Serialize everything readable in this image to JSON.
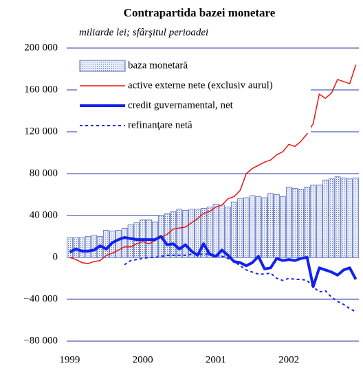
{
  "chart_data": {
    "type": "bar",
    "title": "Contrapartida bazei monetare",
    "subtitle": "miliarde lei; sfârşitul perioadei",
    "categories": [
      "1999",
      null,
      null,
      null,
      null,
      null,
      null,
      null,
      null,
      null,
      null,
      null,
      "2000",
      null,
      null,
      null,
      null,
      null,
      null,
      null,
      null,
      null,
      null,
      null,
      "2001",
      null,
      null,
      null,
      null,
      null,
      null,
      null,
      null,
      null,
      null,
      null,
      "2002",
      null,
      null,
      null,
      null,
      null,
      null,
      null,
      null,
      null,
      null,
      null
    ],
    "series": [
      {
        "name": "baza monetară",
        "type": "bar",
        "color": "#3344aa",
        "values": [
          19000,
          19000,
          19000,
          20000,
          21000,
          20000,
          26000,
          25000,
          26000,
          28000,
          31000,
          33000,
          36000,
          36000,
          34000,
          40000,
          42000,
          44000,
          46000,
          45000,
          46000,
          46000,
          47000,
          48000,
          51000,
          50000,
          48000,
          53000,
          56000,
          57000,
          59000,
          58000,
          57000,
          61000,
          60000,
          58000,
          67000,
          66000,
          65000,
          67000,
          69000,
          69000,
          74000,
          75000,
          77000,
          76000,
          75000,
          76000
        ]
      },
      {
        "name": "active externe nete (exclusiv aurul)",
        "type": "line",
        "color": "#ee1111",
        "width": 1.5,
        "dashed": false,
        "values": [
          0,
          -2000,
          -5000,
          -6000,
          -4000,
          -3000,
          2000,
          4000,
          7000,
          10000,
          10000,
          13000,
          15000,
          13000,
          16000,
          19000,
          22000,
          27000,
          28000,
          29000,
          33000,
          37000,
          42000,
          44000,
          48000,
          50000,
          56000,
          58000,
          64000,
          80000,
          85000,
          88000,
          91000,
          93000,
          98000,
          101000,
          108000,
          106000,
          111000,
          118000,
          128000,
          156000,
          152000,
          157000,
          170000,
          168000,
          166000,
          184000
        ]
      },
      {
        "name": "credit guvernamental, net",
        "type": "line",
        "color": "#1122ee",
        "width": 4,
        "dashed": false,
        "values": [
          5000,
          8000,
          6000,
          6000,
          7000,
          11000,
          8000,
          14000,
          17000,
          19000,
          18000,
          17000,
          17000,
          17000,
          17000,
          20000,
          12000,
          13000,
          8000,
          12000,
          6000,
          2000,
          13000,
          3000,
          1000,
          7000,
          2000,
          -4000,
          -5000,
          -8000,
          -5000,
          1000,
          -11000,
          -10000,
          -1000,
          -3000,
          -2000,
          -3000,
          -1000,
          0,
          -28000,
          -10000,
          -12000,
          -14000,
          -17000,
          -12000,
          -10000,
          -21000
        ]
      },
      {
        "name": "refinanţare netă",
        "type": "line",
        "color": "#1122ee",
        "width": 2,
        "dashed": true,
        "values": [
          null,
          null,
          null,
          null,
          null,
          null,
          null,
          null,
          null,
          -7000,
          -3000,
          -2000,
          -1000,
          0,
          0,
          1000,
          2000,
          2000,
          2000,
          2000,
          3000,
          3000,
          3000,
          3000,
          2000,
          1000,
          -1000,
          -4000,
          -8000,
          -12000,
          -14000,
          -16000,
          -16000,
          -15000,
          -20000,
          -22000,
          -20000,
          -21000,
          -21000,
          -22000,
          -28000,
          -33000,
          -32000,
          -38000,
          -42000,
          -45000,
          -49000,
          -52000
        ]
      }
    ],
    "ylim": [
      -80000,
      200000
    ],
    "yticks": [
      {
        "value": -80000,
        "label": "−80 000"
      },
      {
        "value": -40000,
        "label": "−40 000"
      },
      0,
      {
        "value": 40000,
        "label": "40 000"
      },
      {
        "value": 80000,
        "label": "80 000"
      },
      {
        "value": 120000,
        "label": "120 000"
      },
      {
        "value": 160000,
        "label": "160 000"
      },
      {
        "value": 200000,
        "label": "200 000"
      }
    ],
    "grid": true,
    "grid_color": "#2233aa",
    "legend": "upper left"
  }
}
